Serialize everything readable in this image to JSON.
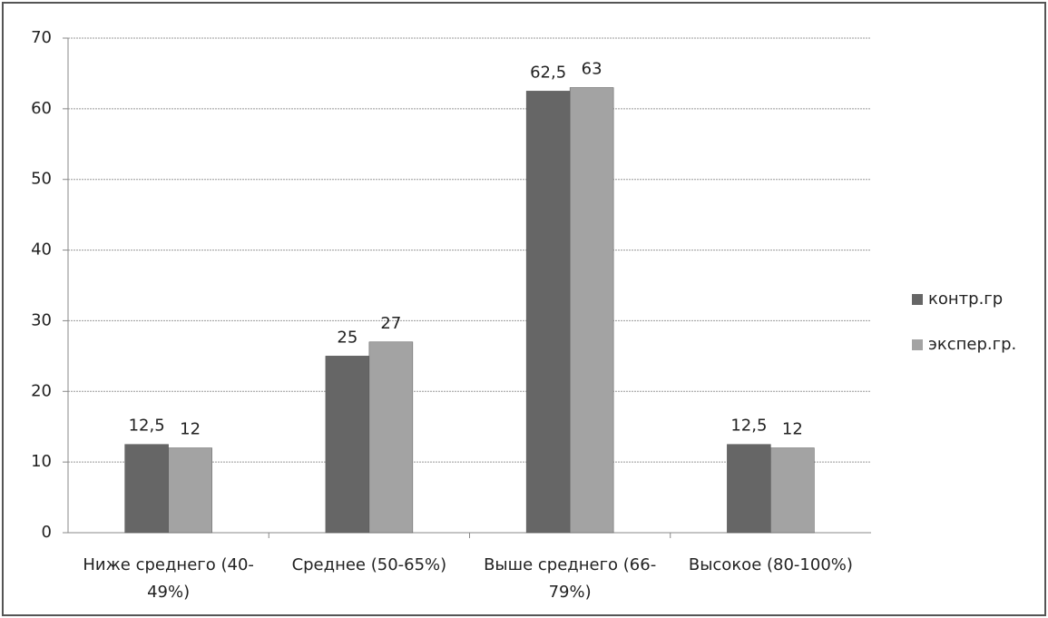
{
  "chart_data": {
    "type": "bar",
    "categories": [
      "Ниже среднего (40-49%)",
      "Среднее (50-65%)",
      "Выше среднего (66-79%)",
      "Высокое (80-100%)"
    ],
    "series": [
      {
        "name": "контр.гр",
        "color": "#666666",
        "values": [
          12.5,
          25,
          62.5,
          12.5
        ],
        "value_labels": [
          "12,5",
          "25",
          "62,5",
          "12,5"
        ]
      },
      {
        "name": "экспер.гр.",
        "color": "#a3a3a3",
        "values": [
          12,
          27,
          63,
          12
        ]
      }
    ],
    "ylim": [
      0,
      70
    ],
    "yticks": [
      0,
      10,
      20,
      30,
      40,
      50,
      60,
      70
    ],
    "grid": true,
    "legend": "right"
  }
}
